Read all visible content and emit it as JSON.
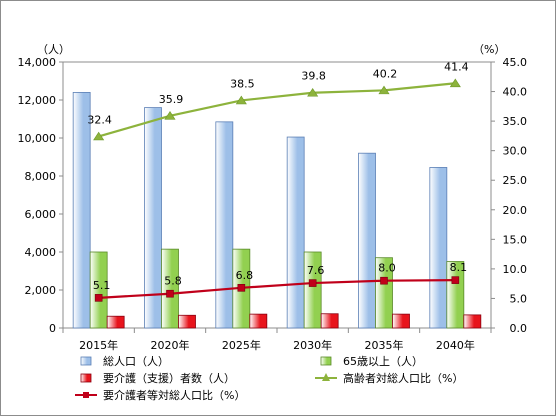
{
  "chart_data": {
    "type": "bar",
    "categories": [
      "2015年",
      "2020年",
      "2025年",
      "2030年",
      "2035年",
      "2040年"
    ],
    "left_axis": {
      "unit_label": "（人）",
      "ylim": [
        0,
        14000
      ],
      "ticks": [
        "0",
        "2,000",
        "4,000",
        "6,000",
        "8,000",
        "10,000",
        "12,000",
        "14,000"
      ]
    },
    "right_axis": {
      "unit_label": "（%）",
      "ylim": [
        0,
        45
      ],
      "ticks": [
        "0.0",
        "5.0",
        "10.0",
        "15.0",
        "20.0",
        "25.0",
        "30.0",
        "35.0",
        "40.0",
        "45.0"
      ]
    },
    "series": [
      {
        "name": "総人口（人）",
        "type": "bar",
        "axis": "left",
        "color": "#9dbfe8",
        "values": [
          12400,
          11600,
          10850,
          10050,
          9200,
          8450
        ]
      },
      {
        "name": "65歳以上（人）",
        "type": "bar",
        "axis": "left",
        "color": "#92d050",
        "values": [
          4000,
          4150,
          4150,
          4000,
          3700,
          3500
        ]
      },
      {
        "name": "要介護（支援）者数（人）",
        "type": "bar",
        "axis": "left",
        "color": "#e8141c",
        "values": [
          620,
          670,
          730,
          750,
          730,
          690
        ]
      },
      {
        "name": "高齢者対総人口比（%）",
        "type": "line",
        "axis": "right",
        "color": "#8db33c",
        "marker": "triangle",
        "values": [
          32.4,
          35.9,
          38.5,
          39.8,
          40.2,
          41.4
        ],
        "labels": [
          "32.4",
          "35.9",
          "38.5",
          "39.8",
          "40.2",
          "41.4"
        ]
      },
      {
        "name": "要介護者等対総人口比（%）",
        "type": "line",
        "axis": "right",
        "color": "#c0001a",
        "marker": "square",
        "values": [
          5.1,
          5.8,
          6.8,
          7.6,
          8.0,
          8.1
        ],
        "labels": [
          "5.1",
          "5.8",
          "6.8",
          "7.6",
          "8.0",
          "8.1"
        ]
      }
    ],
    "grid": false,
    "legend_position": "bottom"
  }
}
